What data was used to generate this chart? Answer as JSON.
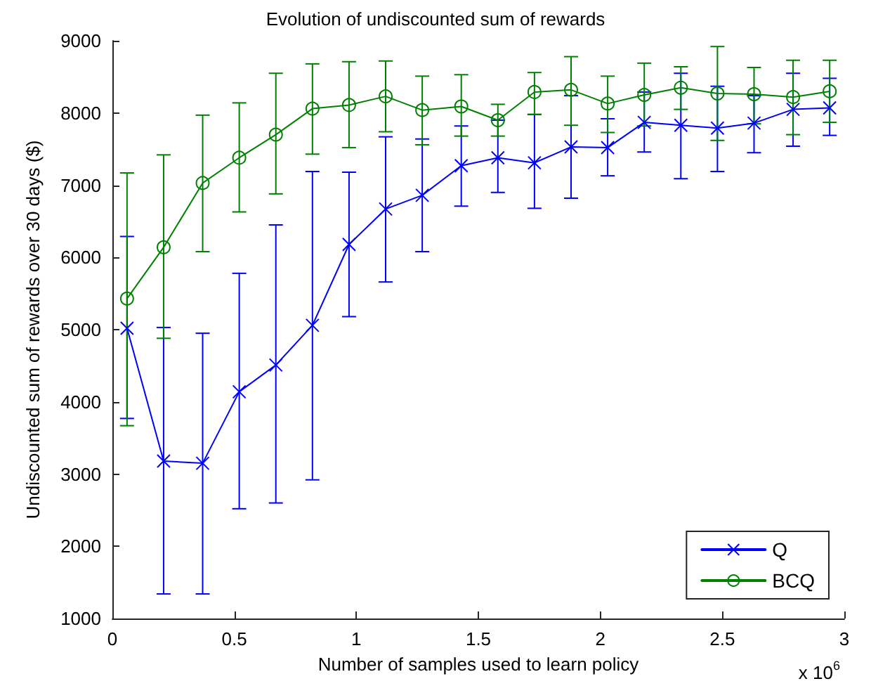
{
  "chart_data": {
    "type": "line",
    "title": "Evolution of undiscounted sum of rewards",
    "xlabel": "Number of samples used to learn policy",
    "ylabel": "Undiscounted sum of rewards over 30 days ($)",
    "annotations": [
      "x 10$^{6}$"
    ],
    "x": [
      0.06,
      0.21,
      0.37,
      0.52,
      0.67,
      0.82,
      0.97,
      1.12,
      1.27,
      1.43,
      1.58,
      1.73,
      1.88,
      2.03,
      2.18,
      2.33,
      2.48,
      2.63,
      2.79,
      2.94
    ],
    "series": [
      {
        "name": "Q",
        "color": "#0000ff",
        "marker": "cross",
        "values": [
          5020,
          3180,
          3150,
          4140,
          4510,
          5060,
          6180,
          6670,
          6860,
          7270,
          7380,
          7310,
          7530,
          7520,
          7870,
          7830,
          7790,
          7860,
          8050,
          8070
        ],
        "errors": [
          [
            3770,
            6290
          ],
          [
            1340,
            5030
          ],
          [
            1340,
            4950
          ],
          [
            2520,
            5780
          ],
          [
            2600,
            6450
          ],
          [
            2920,
            7190
          ],
          [
            5180,
            7180
          ],
          [
            5660,
            7670
          ],
          [
            6080,
            7640
          ],
          [
            6710,
            7820
          ],
          [
            6900,
            7900
          ],
          [
            6680,
            7980
          ],
          [
            6820,
            8240
          ],
          [
            7130,
            7920
          ],
          [
            7460,
            8290
          ],
          [
            7090,
            8550
          ],
          [
            7190,
            8370
          ],
          [
            7450,
            8240
          ],
          [
            7540,
            8550
          ],
          [
            7690,
            8480
          ]
        ]
      },
      {
        "name": "BCQ",
        "color": "#008000",
        "marker": "circle",
        "values": [
          5430,
          6140,
          7030,
          7380,
          7700,
          8060,
          8110,
          8230,
          8040,
          8090,
          7900,
          8290,
          8320,
          8130,
          8250,
          8350,
          8270,
          8260,
          8220,
          8300
        ],
        "errors": [
          [
            3670,
            7170
          ],
          [
            4880,
            7420
          ],
          [
            6080,
            7970
          ],
          [
            6630,
            8140
          ],
          [
            6880,
            8550
          ],
          [
            7430,
            8680
          ],
          [
            7520,
            8710
          ],
          [
            7740,
            8720
          ],
          [
            7560,
            8510
          ],
          [
            7680,
            8530
          ],
          [
            7680,
            8120
          ],
          [
            7980,
            8560
          ],
          [
            7830,
            8780
          ],
          [
            7730,
            8510
          ],
          [
            7820,
            8690
          ],
          [
            8050,
            8640
          ],
          [
            7620,
            8920
          ],
          [
            7850,
            8630
          ],
          [
            7700,
            8730
          ],
          [
            7870,
            8730
          ]
        ]
      }
    ],
    "xlim": [
      0,
      3
    ],
    "xticks": [
      0,
      0.5,
      1,
      1.5,
      2,
      2.5,
      3
    ],
    "ylim": [
      1000,
      9000
    ],
    "yticks": [
      1000,
      2000,
      3000,
      4000,
      5000,
      6000,
      7000,
      8000,
      9000
    ],
    "legend": "bottom right",
    "grid": false,
    "line_style": "solid"
  }
}
